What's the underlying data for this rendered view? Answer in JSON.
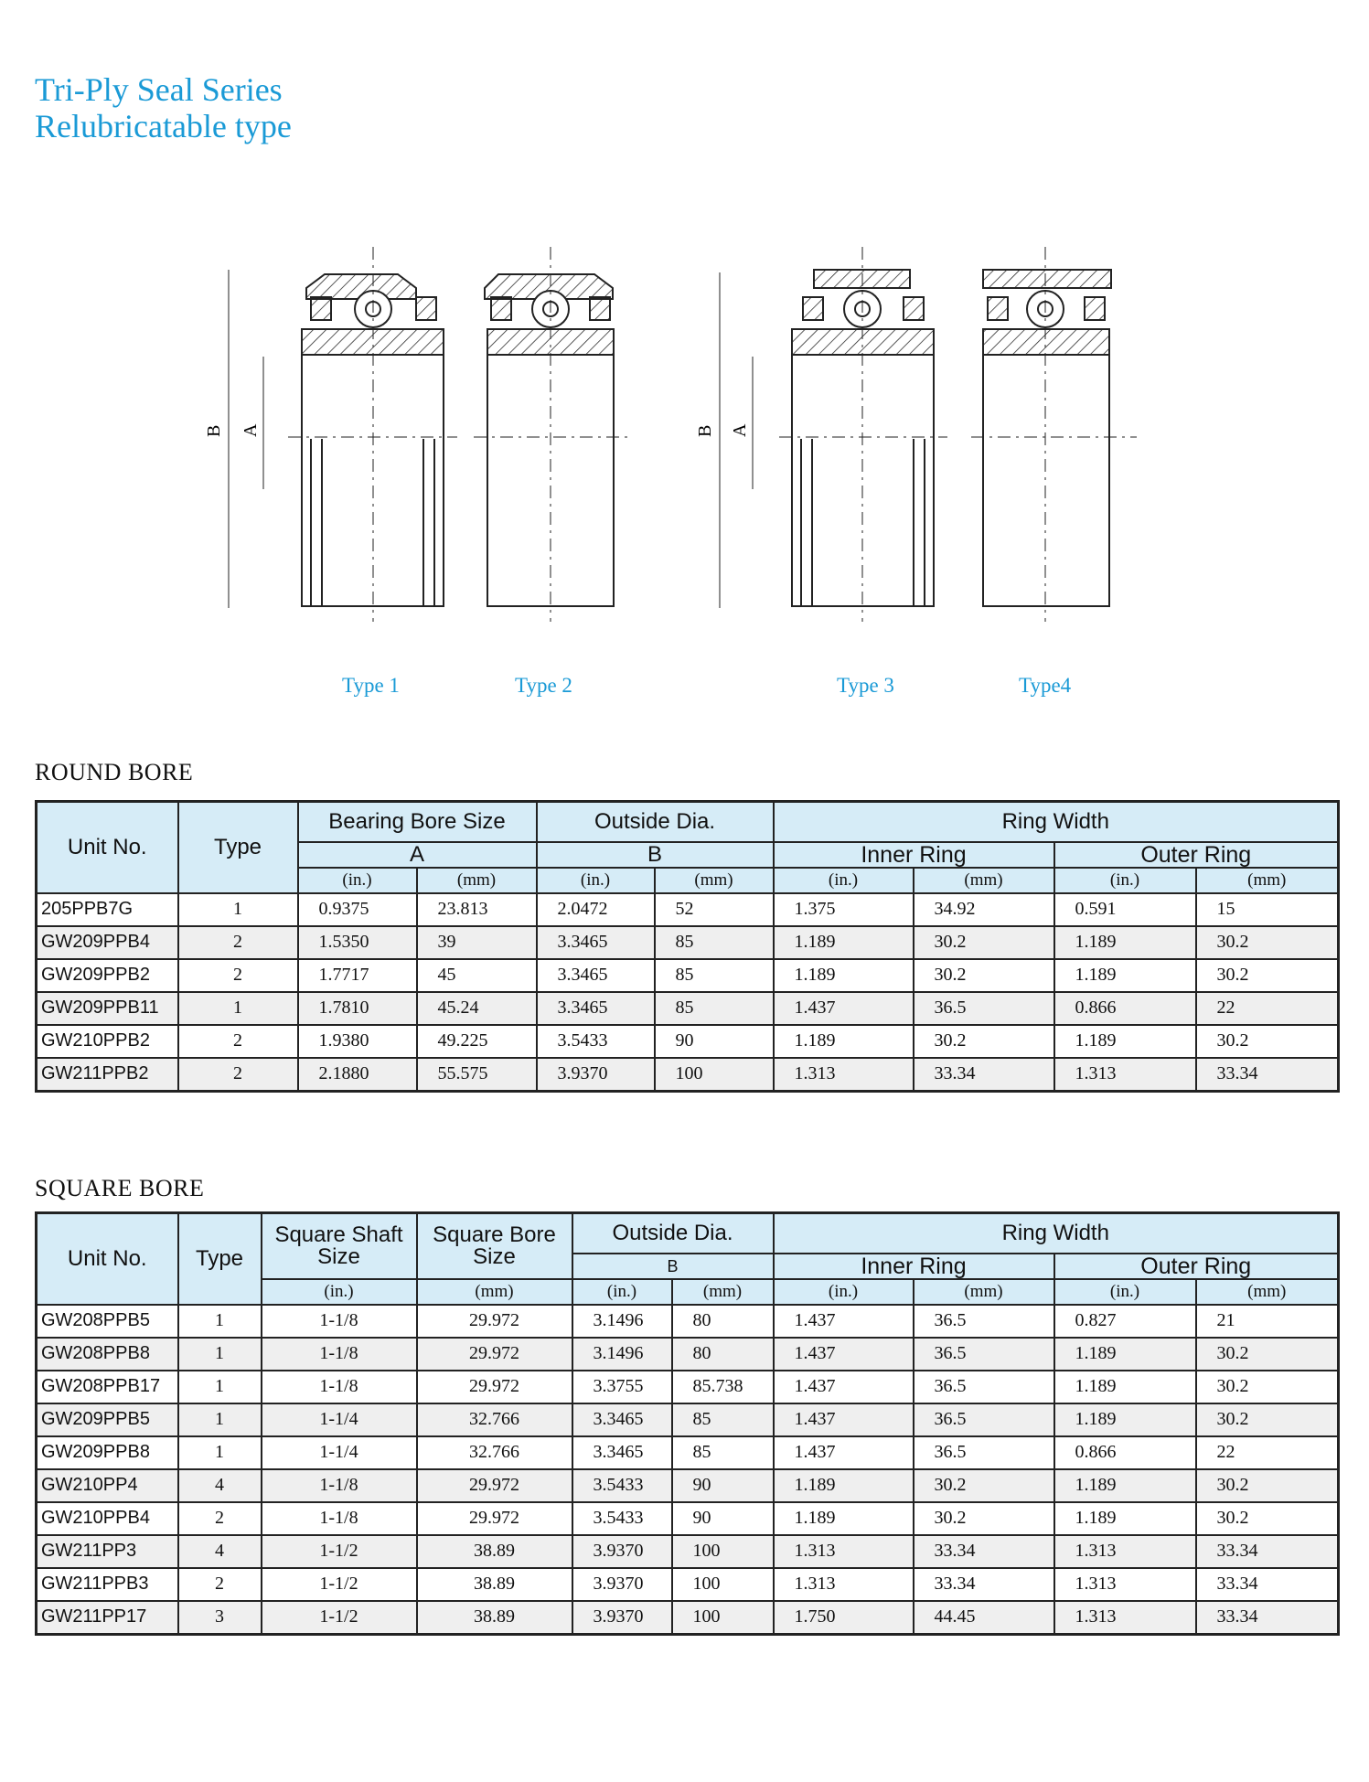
{
  "title": {
    "line1": "Tri-Ply Seal Series",
    "line2": "Relubricatable  type"
  },
  "diagram": {
    "dimension_labels": {
      "b": "B",
      "a": "A"
    },
    "type_labels": [
      "Type 1",
      "Type 2",
      "Type 3",
      "Type4"
    ]
  },
  "round_bore": {
    "heading": "ROUND BORE",
    "headers": {
      "unit_no": "Unit No.",
      "type": "Type",
      "bore": "Bearing Bore Size",
      "bore_sub": "A",
      "od": "Outside Dia.",
      "od_sub": "B",
      "ring_width": "Ring Width",
      "inner": "Inner Ring",
      "outer": "Outer Ring",
      "in": "(in.)",
      "mm": "(mm)"
    },
    "rows": [
      [
        "205PPB7G",
        "1",
        "0.9375",
        "23.813",
        "2.0472",
        "52",
        "1.375",
        "34.92",
        "0.591",
        "15"
      ],
      [
        "GW209PPB4",
        "2",
        "1.5350",
        "39",
        "3.3465",
        "85",
        "1.189",
        "30.2",
        "1.189",
        "30.2"
      ],
      [
        "GW209PPB2",
        "2",
        "1.7717",
        "45",
        "3.3465",
        "85",
        "1.189",
        "30.2",
        "1.189",
        "30.2"
      ],
      [
        "GW209PPB11",
        "1",
        "1.7810",
        "45.24",
        "3.3465",
        "85",
        "1.437",
        "36.5",
        "0.866",
        "22"
      ],
      [
        "GW210PPB2",
        "2",
        "1.9380",
        "49.225",
        "3.5433",
        "90",
        "1.189",
        "30.2",
        "1.189",
        "30.2"
      ],
      [
        "GW211PPB2",
        "2",
        "2.1880",
        "55.575",
        "3.9370",
        "100",
        "1.313",
        "33.34",
        "1.313",
        "33.34"
      ]
    ]
  },
  "square_bore": {
    "heading": "SQUARE BORE",
    "headers": {
      "unit_no": "Unit No.",
      "type": "Type",
      "shaft": "Square Shaft Size",
      "bore": "Square Bore Size",
      "od": "Outside Dia.",
      "od_sub": "B",
      "ring_width": "Ring Width",
      "inner": "Inner Ring",
      "outer": "Outer Ring",
      "in": "(in.)",
      "mm": "(mm)"
    },
    "rows": [
      [
        "GW208PPB5",
        "1",
        "1-1/8",
        "29.972",
        "3.1496",
        "80",
        "1.437",
        "36.5",
        "0.827",
        "21"
      ],
      [
        "GW208PPB8",
        "1",
        "1-1/8",
        "29.972",
        "3.1496",
        "80",
        "1.437",
        "36.5",
        "1.189",
        "30.2"
      ],
      [
        "GW208PPB17",
        "1",
        "1-1/8",
        "29.972",
        "3.3755",
        "85.738",
        "1.437",
        "36.5",
        "1.189",
        "30.2"
      ],
      [
        "GW209PPB5",
        "1",
        "1-1/4",
        "32.766",
        "3.3465",
        "85",
        "1.437",
        "36.5",
        "1.189",
        "30.2"
      ],
      [
        "GW209PPB8",
        "1",
        "1-1/4",
        "32.766",
        "3.3465",
        "85",
        "1.437",
        "36.5",
        "0.866",
        "22"
      ],
      [
        "GW210PP4",
        "4",
        "1-1/8",
        "29.972",
        "3.5433",
        "90",
        "1.189",
        "30.2",
        "1.189",
        "30.2"
      ],
      [
        "GW210PPB4",
        "2",
        "1-1/8",
        "29.972",
        "3.5433",
        "90",
        "1.189",
        "30.2",
        "1.189",
        "30.2"
      ],
      [
        "GW211PP3",
        "4",
        "1-1/2",
        "38.89",
        "3.9370",
        "100",
        "1.313",
        "33.34",
        "1.313",
        "33.34"
      ],
      [
        "GW211PPB3",
        "2",
        "1-1/2",
        "38.89",
        "3.9370",
        "100",
        "1.313",
        "33.34",
        "1.313",
        "33.34"
      ],
      [
        "GW211PP17",
        "3",
        "1-1/2",
        "38.89",
        "3.9370",
        "100",
        "1.750",
        "44.45",
        "1.313",
        "33.34"
      ]
    ]
  }
}
